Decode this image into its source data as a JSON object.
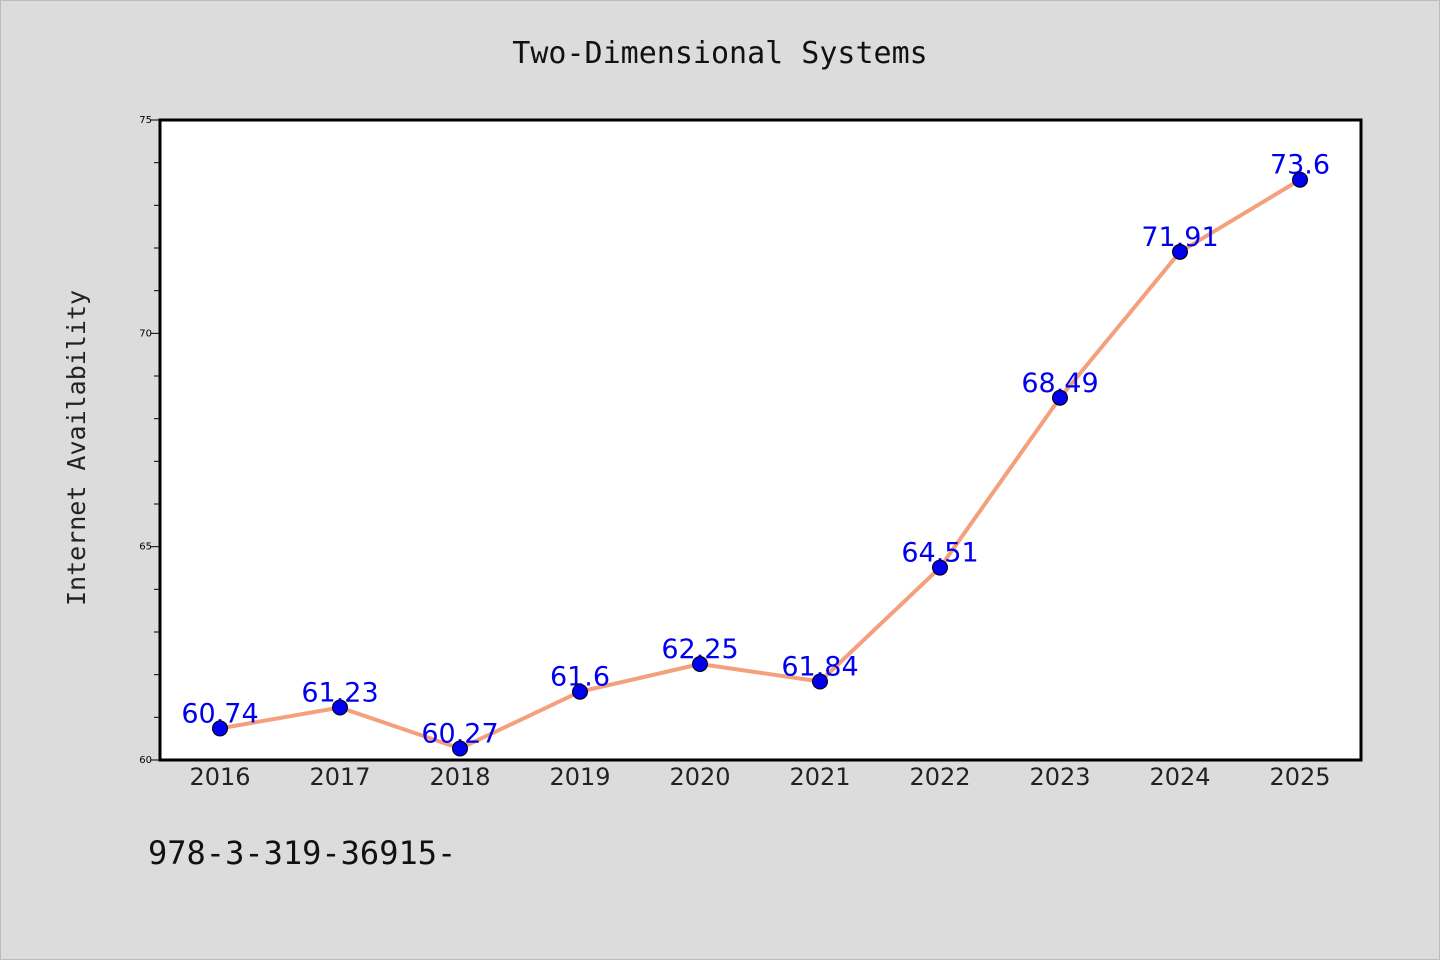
{
  "chart_data": {
    "type": "line",
    "title": "Two-Dimensional Systems",
    "xlabel": "",
    "ylabel": "Internet Availability",
    "categories": [
      "2016",
      "2017",
      "2018",
      "2019",
      "2020",
      "2021",
      "2022",
      "2023",
      "2024",
      "2025"
    ],
    "series": [
      {
        "values": [
          60.74,
          61.23,
          60.27,
          61.6,
          62.25,
          61.84,
          64.51,
          68.49,
          71.91,
          73.6
        ],
        "labels": [
          "60.74",
          "61.23",
          "60.27",
          "61.6",
          "62.25",
          "61.84",
          "64.51",
          "68.49",
          "71.91",
          "73.6"
        ]
      }
    ],
    "ylim": [
      60,
      75
    ],
    "yticks": [
      60,
      65,
      70,
      75
    ],
    "ytick_labels": [
      "60",
      "65",
      "70",
      "75"
    ],
    "yminor_step": 1,
    "grid": false,
    "line_color": "#f4a07c",
    "marker_color": "#0000ee",
    "label_color": "#0000ee"
  },
  "footnote": "978-3-319-36915-"
}
